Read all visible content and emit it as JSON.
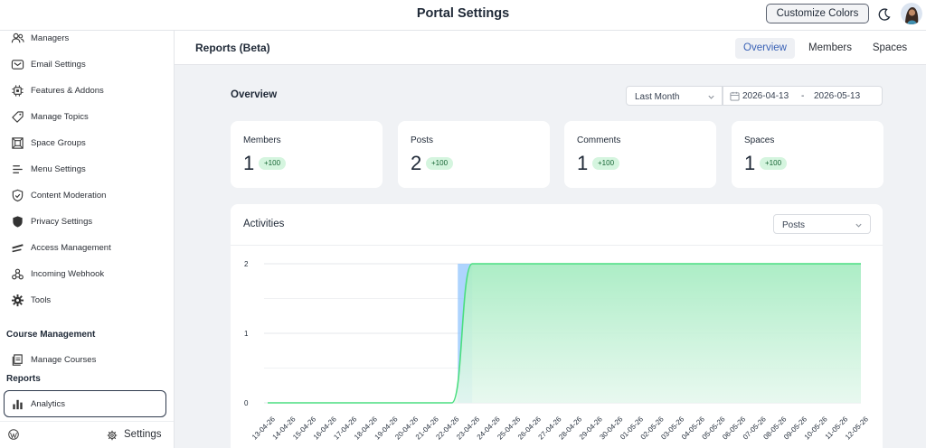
{
  "header": {
    "title": "Portal Settings",
    "customize_label": "Customize Colors"
  },
  "sidebar": {
    "items": [
      {
        "label": "Managers",
        "icon": "users-icon"
      },
      {
        "label": "Email Settings",
        "icon": "envelope-icon"
      },
      {
        "label": "Features & Addons",
        "icon": "chip-icon"
      },
      {
        "label": "Manage Topics",
        "icon": "tag-icon"
      },
      {
        "label": "Space Groups",
        "icon": "grid-icon"
      },
      {
        "label": "Menu Settings",
        "icon": "menu-icon"
      },
      {
        "label": "Content Moderation",
        "icon": "shield-check-icon"
      },
      {
        "label": "Privacy Settings",
        "icon": "shield-icon"
      },
      {
        "label": "Access Management",
        "icon": "key-icon"
      },
      {
        "label": "Incoming Webhook",
        "icon": "webhook-icon"
      },
      {
        "label": "Tools",
        "icon": "gear-icon"
      }
    ],
    "course_heading": "Course Management",
    "manage_courses": "Manage Courses",
    "reports_heading": "Reports",
    "analytics": "Analytics",
    "settings": "Settings"
  },
  "main": {
    "title": "Reports (Beta)",
    "tabs": [
      {
        "label": "Overview",
        "active": true
      },
      {
        "label": "Members"
      },
      {
        "label": "Spaces"
      }
    ],
    "overview_title": "Overview",
    "period": "Last Month",
    "date_from": "2026-04-13",
    "date_sep": "-",
    "date_to": "2026-05-13",
    "stats": [
      {
        "label": "Members",
        "value": "1",
        "delta": "+100"
      },
      {
        "label": "Posts",
        "value": "2",
        "delta": "+100"
      },
      {
        "label": "Comments",
        "value": "1",
        "delta": "+100"
      },
      {
        "label": "Spaces",
        "value": "1",
        "delta": "+100"
      }
    ],
    "activities_title": "Activities",
    "activity_metric": "Posts"
  },
  "colors": {
    "accent": "#3a62b6",
    "area_fill": "#bff0d1",
    "line": "#4ade80",
    "highlight": "#93c5fd",
    "badge_bg": "#d5f5df"
  },
  "chart_data": {
    "type": "area",
    "x": [
      "13-04-26",
      "14-04-26",
      "15-04-26",
      "16-04-26",
      "17-04-26",
      "18-04-26",
      "19-04-26",
      "20-04-26",
      "21-04-26",
      "22-04-26",
      "23-04-26",
      "24-04-26",
      "25-04-26",
      "26-04-26",
      "27-04-26",
      "28-04-26",
      "29-04-26",
      "30-04-26",
      "01-05-26",
      "02-05-26",
      "03-05-26",
      "04-05-26",
      "05-05-26",
      "06-05-26",
      "07-05-26",
      "08-05-26",
      "09-05-26",
      "10-05-26",
      "11-05-26",
      "12-05-26"
    ],
    "series": [
      {
        "values": [
          0,
          0,
          0,
          0,
          0,
          0,
          0,
          0,
          0,
          0,
          2,
          2,
          2,
          2,
          2,
          2,
          2,
          2,
          2,
          2,
          2,
          2,
          2,
          2,
          2,
          2,
          2,
          2,
          2,
          2
        ]
      }
    ],
    "ylim": [
      0,
      2
    ],
    "yticks": [
      "0",
      "1",
      "2"
    ],
    "grid": true,
    "highlight_index": 10
  }
}
